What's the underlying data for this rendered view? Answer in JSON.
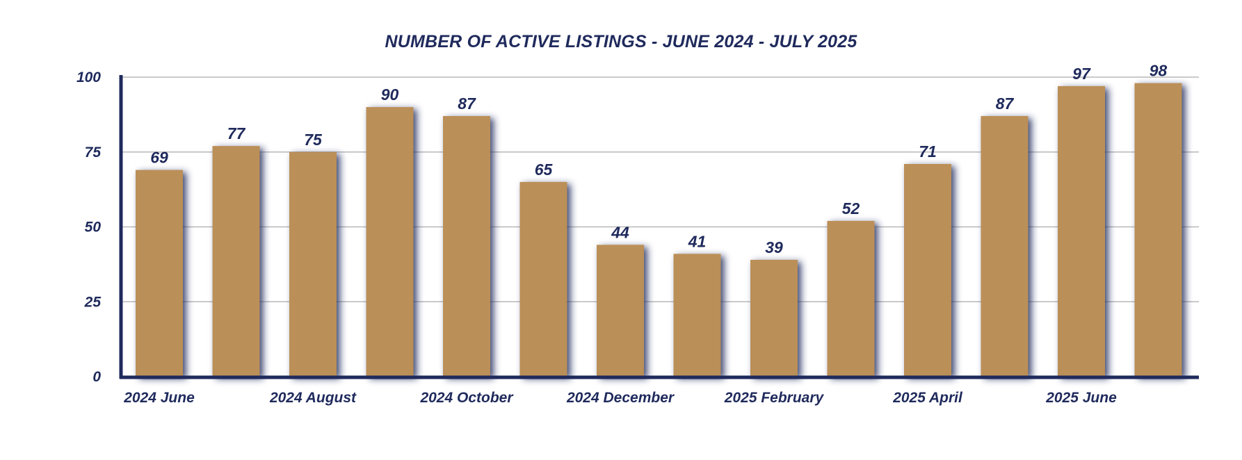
{
  "chart_data": {
    "type": "bar",
    "title": "NUMBER OF ACTIVE LISTINGS - JUNE 2024 -  JULY 2025",
    "categories": [
      "2024 June",
      "",
      "2024 August",
      "",
      "2024 October",
      "",
      "2024 December",
      "",
      "2025 February",
      "",
      "2025 April",
      "",
      "2025 June",
      ""
    ],
    "values": [
      69,
      77,
      75,
      90,
      87,
      65,
      44,
      41,
      39,
      52,
      71,
      87,
      97,
      98
    ],
    "ylim": [
      0,
      100
    ],
    "yticks": [
      0,
      25,
      50,
      75,
      100
    ],
    "xlabel": "",
    "ylabel": "",
    "grid": true,
    "data_labels": true
  },
  "colors": {
    "bar": "#bb8f59",
    "text": "#1f2a5c",
    "axis": "#1f2a5c",
    "grid": "#b8b8b8",
    "shadow": "#1f2a5c"
  }
}
